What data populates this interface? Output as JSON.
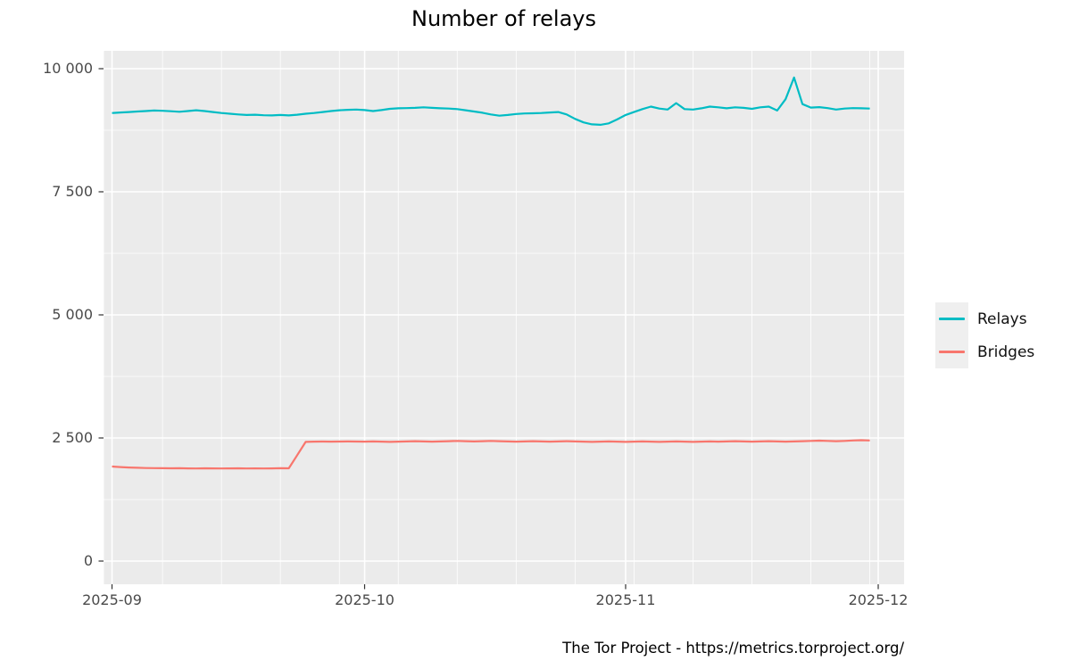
{
  "chart_data": {
    "type": "line",
    "title": "Number of relays",
    "caption": "The Tor Project - https://metrics.torproject.org/",
    "panel_background": "#EBEBEB",
    "grid_color": "#FFFFFF",
    "axis_text_color": "#4a4a4a",
    "tick_mark_color": "#333333",
    "x_axis": {
      "tick_labels": [
        "2025-09",
        "2025-10",
        "2025-11",
        "2025-12"
      ],
      "tick_day_offsets": [
        0,
        30,
        61,
        91
      ],
      "minor_grid_day_offsets": [
        -1,
        6,
        13,
        20,
        27,
        34,
        41,
        48,
        55,
        62,
        69,
        76,
        83,
        90
      ],
      "start_date": "2025-09-01",
      "end_date": "2025-11-30"
    },
    "y_axis": {
      "tick_labels": [
        "0",
        "2 500",
        "5 000",
        "7 500",
        "10 000"
      ],
      "tick_values": [
        0,
        2500,
        5000,
        7500,
        10000
      ],
      "minor_tick_values": [
        1250,
        3750,
        6250,
        8750
      ],
      "ylim": [
        0,
        10000
      ]
    },
    "legend": {
      "position": "right",
      "entries": [
        "Relays",
        "Bridges"
      ]
    },
    "series": [
      {
        "name": "Relays",
        "color": "#00BCC4",
        "start_date": "2025-09-01",
        "interval": "daily",
        "values": [
          9100,
          9110,
          9120,
          9130,
          9140,
          9150,
          9145,
          9135,
          9125,
          9140,
          9155,
          9140,
          9120,
          9100,
          9085,
          9070,
          9060,
          9065,
          9055,
          9050,
          9060,
          9050,
          9065,
          9085,
          9100,
          9120,
          9140,
          9155,
          9165,
          9170,
          9160,
          9140,
          9160,
          9185,
          9195,
          9200,
          9205,
          9215,
          9205,
          9195,
          9190,
          9180,
          9155,
          9130,
          9105,
          9070,
          9045,
          9060,
          9080,
          9090,
          9095,
          9100,
          9110,
          9120,
          9070,
          8980,
          8910,
          8870,
          8860,
          8890,
          8970,
          9060,
          9120,
          9180,
          9230,
          9190,
          9170,
          9300,
          9180,
          9170,
          9195,
          9230,
          9215,
          9195,
          9215,
          9205,
          9185,
          9215,
          9230,
          9150,
          9380,
          9820,
          9280,
          9210,
          9220,
          9200,
          9170,
          9190,
          9200,
          9195,
          9190
        ]
      },
      {
        "name": "Bridges",
        "color": "#F8766D",
        "start_date": "2025-09-01",
        "interval": "daily",
        "values": [
          1920,
          1910,
          1900,
          1895,
          1890,
          1888,
          1885,
          1884,
          1886,
          1882,
          1880,
          1884,
          1882,
          1880,
          1882,
          1884,
          1880,
          1882,
          1880,
          1882,
          1885,
          1884,
          2150,
          2420,
          2425,
          2428,
          2425,
          2428,
          2430,
          2428,
          2425,
          2430,
          2425,
          2420,
          2425,
          2430,
          2435,
          2430,
          2425,
          2430,
          2435,
          2440,
          2435,
          2430,
          2435,
          2440,
          2435,
          2430,
          2425,
          2430,
          2435,
          2430,
          2425,
          2430,
          2435,
          2430,
          2425,
          2420,
          2425,
          2430,
          2425,
          2420,
          2425,
          2430,
          2425,
          2420,
          2425,
          2430,
          2425,
          2420,
          2425,
          2430,
          2425,
          2430,
          2435,
          2430,
          2425,
          2430,
          2435,
          2430,
          2425,
          2430,
          2435,
          2440,
          2445,
          2440,
          2435,
          2440,
          2450,
          2455,
          2450
        ]
      }
    ]
  }
}
